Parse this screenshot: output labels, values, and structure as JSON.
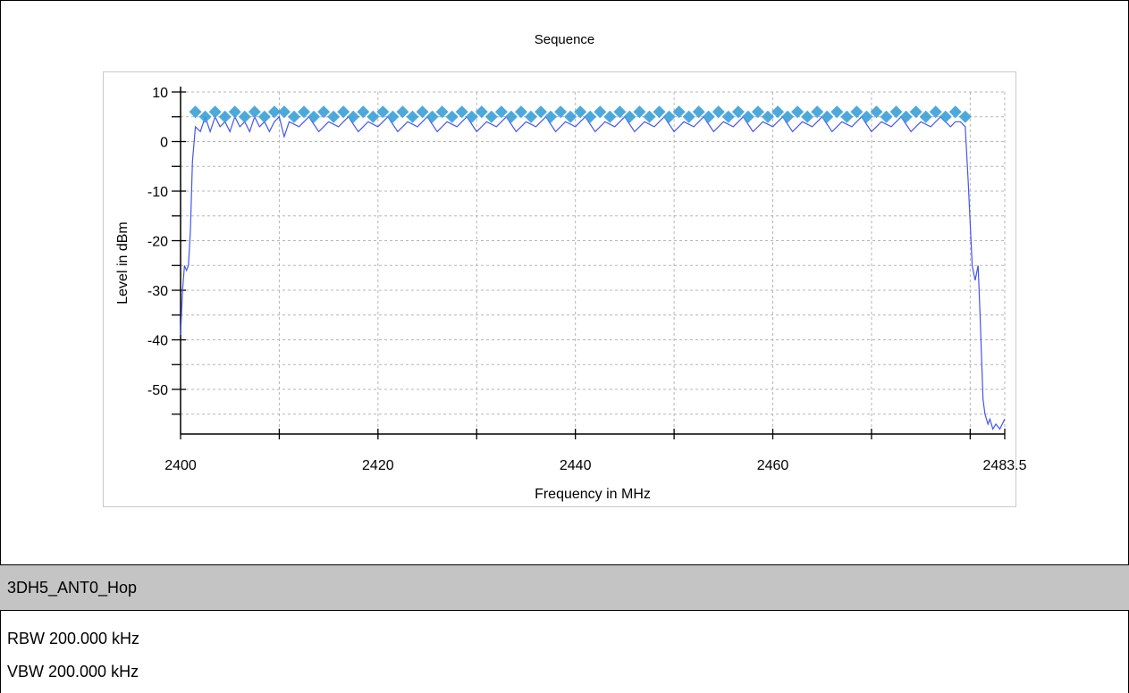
{
  "report": {
    "section_title": "3DH5_ANT0_Hop",
    "rbw": "RBW 200.000 kHz",
    "vbw": "VBW 200.000 kHz"
  },
  "chart_data": {
    "type": "line",
    "title": "Sequence",
    "xlabel": "Frequency in MHz",
    "ylabel": "Level in dBm",
    "xlim": [
      2400,
      2483.5
    ],
    "ylim": [
      -59,
      10
    ],
    "x_ticks": [
      2400,
      2420,
      2440,
      2460,
      2483.5
    ],
    "x_tick_labels": [
      "2400",
      "2420",
      "2440",
      "2460",
      "2483.5"
    ],
    "y_ticks": [
      10,
      0,
      -10,
      -20,
      -30,
      -40,
      -50
    ],
    "y_tick_labels": [
      "10",
      "0",
      "-10",
      "-20",
      "-30",
      "-40",
      "-50"
    ],
    "grid": true,
    "colors": {
      "trace": "#4455ee",
      "markers": "#3aa0d8"
    },
    "series": [
      {
        "style": "line",
        "x": [
          2400.0,
          2400.2,
          2400.4,
          2400.6,
          2400.8,
          2401.0,
          2401.2,
          2401.5,
          2402.0,
          2402.5,
          2403.0,
          2403.5,
          2404.0,
          2404.5,
          2405.0,
          2405.5,
          2406.0,
          2406.5,
          2407.0,
          2407.5,
          2408.0,
          2408.5,
          2409.0,
          2409.5,
          2410.0,
          2410.5,
          2411.0,
          2412.0,
          2413.0,
          2414.0,
          2415.0,
          2416.0,
          2417.0,
          2418.0,
          2419.0,
          2420.0,
          2421.0,
          2422.0,
          2423.0,
          2424.0,
          2425.0,
          2426.0,
          2427.0,
          2428.0,
          2429.0,
          2430.0,
          2431.0,
          2432.0,
          2433.0,
          2434.0,
          2435.0,
          2436.0,
          2437.0,
          2438.0,
          2439.0,
          2440.0,
          2441.0,
          2442.0,
          2443.0,
          2444.0,
          2445.0,
          2446.0,
          2447.0,
          2448.0,
          2449.0,
          2450.0,
          2451.0,
          2452.0,
          2453.0,
          2454.0,
          2455.0,
          2456.0,
          2457.0,
          2458.0,
          2459.0,
          2460.0,
          2461.0,
          2462.0,
          2463.0,
          2464.0,
          2465.0,
          2466.0,
          2467.0,
          2468.0,
          2469.0,
          2470.0,
          2471.0,
          2472.0,
          2473.0,
          2474.0,
          2475.0,
          2476.0,
          2477.0,
          2478.0,
          2478.5,
          2479.0,
          2479.5,
          2479.8,
          2480.2,
          2480.5,
          2480.8,
          2481.0,
          2481.3,
          2481.5,
          2481.8,
          2482.0,
          2482.3,
          2482.6,
          2483.0,
          2483.5
        ],
        "y": [
          -39,
          -30,
          -25,
          -26,
          -25,
          -18,
          -4,
          3,
          2,
          5,
          2,
          5,
          3,
          4,
          2,
          5,
          3,
          4,
          2,
          5,
          3,
          4,
          2,
          4,
          5,
          1,
          4,
          3,
          5,
          2,
          4,
          3,
          5,
          2,
          4,
          3,
          5,
          2,
          4,
          3,
          5,
          2,
          4,
          3,
          5,
          2,
          4,
          3,
          5,
          2,
          4,
          3,
          5,
          2,
          4,
          3,
          5,
          2,
          4,
          3,
          5,
          2,
          4,
          3,
          5,
          2,
          4,
          3,
          5,
          2,
          4,
          3,
          5,
          2,
          4,
          3,
          5,
          2,
          4,
          3,
          5,
          2,
          4,
          3,
          5,
          2,
          4,
          3,
          5,
          2,
          4,
          3,
          5,
          3,
          4,
          4,
          3,
          -8,
          -25,
          -28,
          -25,
          -35,
          -52,
          -55,
          -57,
          -56,
          -58,
          -57,
          -58,
          -56
        ]
      },
      {
        "style": "markers",
        "x": [
          2401.5,
          2402.5,
          2403.5,
          2404.5,
          2405.5,
          2406.5,
          2407.5,
          2408.5,
          2409.5,
          2410.5,
          2411.5,
          2412.5,
          2413.5,
          2414.5,
          2415.5,
          2416.5,
          2417.5,
          2418.5,
          2419.5,
          2420.5,
          2421.5,
          2422.5,
          2423.5,
          2424.5,
          2425.5,
          2426.5,
          2427.5,
          2428.5,
          2429.5,
          2430.5,
          2431.5,
          2432.5,
          2433.5,
          2434.5,
          2435.5,
          2436.5,
          2437.5,
          2438.5,
          2439.5,
          2440.5,
          2441.5,
          2442.5,
          2443.5,
          2444.5,
          2445.5,
          2446.5,
          2447.5,
          2448.5,
          2449.5,
          2450.5,
          2451.5,
          2452.5,
          2453.5,
          2454.5,
          2455.5,
          2456.5,
          2457.5,
          2458.5,
          2459.5,
          2460.5,
          2461.5,
          2462.5,
          2463.5,
          2464.5,
          2465.5,
          2466.5,
          2467.5,
          2468.5,
          2469.5,
          2470.5,
          2471.5,
          2472.5,
          2473.5,
          2474.5,
          2475.5,
          2476.5,
          2477.5,
          2478.5,
          2479.5
        ],
        "y": [
          6,
          5,
          6,
          5,
          6,
          5,
          6,
          5,
          6,
          6,
          5,
          6,
          5,
          6,
          5,
          6,
          5,
          6,
          5,
          6,
          5,
          6,
          5,
          6,
          5,
          6,
          5,
          6,
          5,
          6,
          5,
          6,
          5,
          6,
          5,
          6,
          5,
          6,
          5,
          6,
          5,
          6,
          5,
          6,
          5,
          6,
          5,
          6,
          5,
          6,
          5,
          6,
          5,
          6,
          5,
          6,
          5,
          6,
          5,
          6,
          5,
          6,
          5,
          6,
          5,
          6,
          5,
          6,
          5,
          6,
          5,
          6,
          5,
          6,
          5,
          6,
          5,
          6,
          5
        ]
      }
    ]
  }
}
